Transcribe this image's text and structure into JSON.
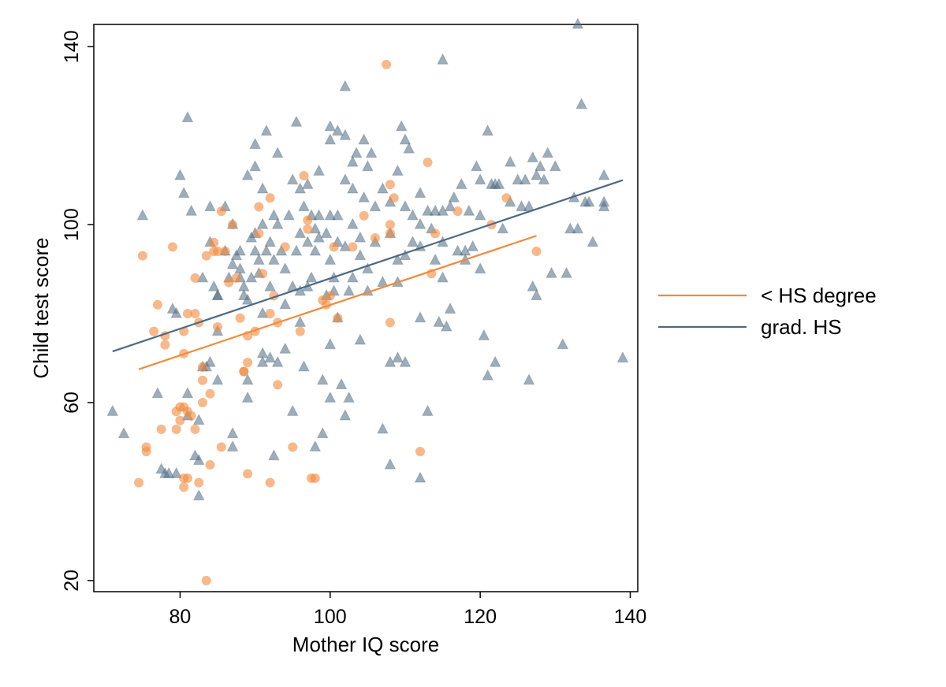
{
  "chart_data": {
    "type": "scatter",
    "title": "",
    "xlabel": "Mother IQ score",
    "ylabel": "Child test score",
    "xlim": [
      68.5,
      141
    ],
    "ylim": [
      17.5,
      145
    ],
    "xticks": [
      80,
      100,
      120,
      140
    ],
    "yticks": [
      20,
      60,
      100,
      140
    ],
    "grid": false,
    "legend_position": "right",
    "series": [
      {
        "name": "< HS degree",
        "marker": "circle",
        "color": "#F4893A",
        "line": {
          "x": [
            74.5,
            127.5
          ],
          "y": [
            67.5,
            97.5
          ]
        },
        "points": [
          [
            74.5,
            42
          ],
          [
            75,
            93
          ],
          [
            75.5,
            50
          ],
          [
            75.5,
            49
          ],
          [
            76.5,
            76
          ],
          [
            77,
            82
          ],
          [
            77.5,
            54
          ],
          [
            78,
            73
          ],
          [
            78,
            75
          ],
          [
            79,
            95
          ],
          [
            79.5,
            54
          ],
          [
            79.5,
            58
          ],
          [
            80,
            56
          ],
          [
            80,
            59
          ],
          [
            80.5,
            43
          ],
          [
            80.5,
            41
          ],
          [
            80.5,
            71
          ],
          [
            80.5,
            76
          ],
          [
            80.5,
            59
          ],
          [
            81,
            43
          ],
          [
            81,
            80
          ],
          [
            81,
            58
          ],
          [
            81.5,
            57
          ],
          [
            82,
            80
          ],
          [
            82,
            88
          ],
          [
            82,
            54
          ],
          [
            82.5,
            42
          ],
          [
            82.5,
            78
          ],
          [
            83,
            60
          ],
          [
            83,
            65
          ],
          [
            83,
            68
          ],
          [
            83.5,
            93
          ],
          [
            83.5,
            20
          ],
          [
            84,
            62
          ],
          [
            84,
            46
          ],
          [
            84.5,
            94
          ],
          [
            84.5,
            96
          ],
          [
            85,
            94
          ],
          [
            85,
            77
          ],
          [
            85.5,
            103
          ],
          [
            85.5,
            50
          ],
          [
            86,
            94
          ],
          [
            86.5,
            87
          ],
          [
            87,
            100
          ],
          [
            87.5,
            88
          ],
          [
            88,
            79
          ],
          [
            88.5,
            67
          ],
          [
            88.5,
            67
          ],
          [
            89,
            44
          ],
          [
            89,
            75
          ],
          [
            89,
            69
          ],
          [
            90,
            76
          ],
          [
            90.5,
            104
          ],
          [
            90.5,
            98
          ],
          [
            91,
            89
          ],
          [
            92,
            80
          ],
          [
            92,
            106
          ],
          [
            92,
            42
          ],
          [
            92.5,
            84
          ],
          [
            93,
            78
          ],
          [
            93,
            64
          ],
          [
            94,
            95
          ],
          [
            95,
            50
          ],
          [
            96,
            76
          ],
          [
            96.5,
            111
          ],
          [
            97,
            101
          ],
          [
            97,
            99
          ],
          [
            97.5,
            43
          ],
          [
            98,
            43
          ],
          [
            99,
            83
          ],
          [
            99.5,
            82
          ],
          [
            100,
            84
          ],
          [
            100.5,
            95
          ],
          [
            101,
            79
          ],
          [
            103,
            95
          ],
          [
            104.5,
            102
          ],
          [
            106,
            97
          ],
          [
            107.5,
            136
          ],
          [
            108,
            100
          ],
          [
            108,
            98
          ],
          [
            108,
            109
          ],
          [
            108,
            78
          ],
          [
            108.5,
            106
          ],
          [
            112,
            49
          ],
          [
            113,
            114
          ],
          [
            113.5,
            89
          ],
          [
            114,
            98
          ],
          [
            117,
            103
          ],
          [
            121.5,
            100
          ],
          [
            123.5,
            106
          ],
          [
            127.5,
            94
          ]
        ]
      },
      {
        "name": "grad. HS",
        "marker": "triangle",
        "color": "#4C6A82",
        "line": {
          "x": [
            71,
            139
          ],
          "y": [
            71.5,
            110
          ]
        },
        "points": [
          [
            71,
            58
          ],
          [
            72.5,
            53
          ],
          [
            75,
            102
          ],
          [
            77,
            62
          ],
          [
            77.5,
            45
          ],
          [
            78,
            44
          ],
          [
            78.5,
            44
          ],
          [
            79,
            81
          ],
          [
            79.5,
            80
          ],
          [
            79.5,
            44
          ],
          [
            80,
            111
          ],
          [
            80.5,
            107
          ],
          [
            81,
            124
          ],
          [
            81,
            62
          ],
          [
            81,
            57
          ],
          [
            81.5,
            103
          ],
          [
            82,
            48
          ],
          [
            82.5,
            47
          ],
          [
            82.5,
            39
          ],
          [
            82.5,
            56
          ],
          [
            83,
            68
          ],
          [
            83,
            88
          ],
          [
            83.5,
            68
          ],
          [
            84,
            104
          ],
          [
            84,
            96
          ],
          [
            84,
            69
          ],
          [
            84.5,
            86
          ],
          [
            85,
            84
          ],
          [
            85,
            84
          ],
          [
            85,
            76
          ],
          [
            85,
            65
          ],
          [
            86,
            104
          ],
          [
            86,
            94
          ],
          [
            86.5,
            88
          ],
          [
            87,
            91
          ],
          [
            87,
            100
          ],
          [
            87,
            53
          ],
          [
            87,
            50
          ],
          [
            87.5,
            93
          ],
          [
            88,
            94
          ],
          [
            88,
            90
          ],
          [
            88,
            88
          ],
          [
            88.5,
            86
          ],
          [
            88.5,
            84
          ],
          [
            89,
            111
          ],
          [
            89,
            83
          ],
          [
            89,
            65
          ],
          [
            89,
            61
          ],
          [
            89.5,
            97
          ],
          [
            89.5,
            88
          ],
          [
            90,
            118
          ],
          [
            90,
            113
          ],
          [
            90,
            98
          ],
          [
            90,
            94
          ],
          [
            90.5,
            92
          ],
          [
            90.5,
            89
          ],
          [
            91,
            108
          ],
          [
            91,
            100
          ],
          [
            91,
            80
          ],
          [
            91,
            71
          ],
          [
            91,
            69
          ],
          [
            91.5,
            121
          ],
          [
            91.5,
            94
          ],
          [
            92,
            96
          ],
          [
            92,
            86
          ],
          [
            92,
            70
          ],
          [
            92.5,
            102
          ],
          [
            92.5,
            92
          ],
          [
            92.5,
            48
          ],
          [
            93,
            116
          ],
          [
            93,
            100
          ],
          [
            93,
            69
          ],
          [
            93.5,
            94
          ],
          [
            94,
            90
          ],
          [
            94,
            82
          ],
          [
            94,
            72
          ],
          [
            94.5,
            102
          ],
          [
            95,
            110
          ],
          [
            95,
            86
          ],
          [
            95,
            58
          ],
          [
            95.5,
            123
          ],
          [
            95.5,
            94
          ],
          [
            96,
            108
          ],
          [
            96,
            98
          ],
          [
            96,
            85
          ],
          [
            96,
            78
          ],
          [
            96.5,
            104
          ],
          [
            96.5,
            68
          ],
          [
            97,
            109
          ],
          [
            97,
            96
          ],
          [
            97,
            86
          ],
          [
            97.5,
            102
          ],
          [
            97.5,
            88
          ],
          [
            98,
            99
          ],
          [
            98,
            94
          ],
          [
            98,
            50
          ],
          [
            98.5,
            112
          ],
          [
            98.5,
            102
          ],
          [
            98.5,
            97
          ],
          [
            99,
            53
          ],
          [
            99,
            65
          ],
          [
            99.5,
            98
          ],
          [
            99.5,
            84
          ],
          [
            100,
            122
          ],
          [
            100,
            119
          ],
          [
            100,
            102
          ],
          [
            100,
            92
          ],
          [
            100,
            73
          ],
          [
            100,
            61
          ],
          [
            100.5,
            88
          ],
          [
            100.5,
            85
          ],
          [
            101,
            121
          ],
          [
            101,
            102
          ],
          [
            101,
            96
          ],
          [
            101,
            79
          ],
          [
            101.5,
            64
          ],
          [
            102,
            131
          ],
          [
            102,
            120
          ],
          [
            102,
            110
          ],
          [
            102,
            95
          ],
          [
            102,
            57
          ],
          [
            102.5,
            85
          ],
          [
            102.5,
            61
          ],
          [
            103,
            114
          ],
          [
            103,
            108
          ],
          [
            103,
            100
          ],
          [
            103,
            88
          ],
          [
            103.5,
            116
          ],
          [
            104,
            97
          ],
          [
            104,
            93
          ],
          [
            104,
            74
          ],
          [
            104.5,
            119
          ],
          [
            104.5,
            106
          ],
          [
            105,
            113
          ],
          [
            105,
            90
          ],
          [
            105,
            85
          ],
          [
            105.5,
            116
          ],
          [
            106,
            104
          ],
          [
            106,
            96
          ],
          [
            107,
            108
          ],
          [
            107,
            87
          ],
          [
            107,
            54
          ],
          [
            108,
            105
          ],
          [
            108,
            98
          ],
          [
            108,
            69
          ],
          [
            108,
            46
          ],
          [
            109,
            112
          ],
          [
            109,
            92
          ],
          [
            109,
            87
          ],
          [
            109,
            70
          ],
          [
            109.5,
            122
          ],
          [
            110,
            119
          ],
          [
            110,
            104
          ],
          [
            110,
            93
          ],
          [
            110,
            69
          ],
          [
            110.5,
            117
          ],
          [
            111,
            102
          ],
          [
            111,
            96
          ],
          [
            112,
            107
          ],
          [
            112,
            100
          ],
          [
            112,
            95
          ],
          [
            112,
            79
          ],
          [
            112,
            43
          ],
          [
            113,
            103
          ],
          [
            113,
            58
          ],
          [
            113.5,
            99
          ],
          [
            114,
            103
          ],
          [
            114,
            92
          ],
          [
            114.5,
            78
          ],
          [
            115,
            137
          ],
          [
            115,
            103
          ],
          [
            115,
            96
          ],
          [
            115,
            88
          ],
          [
            115.5,
            77
          ],
          [
            116,
            104
          ],
          [
            116,
            81
          ],
          [
            116.5,
            106
          ],
          [
            117,
            94
          ],
          [
            117.5,
            109
          ],
          [
            118,
            94
          ],
          [
            118,
            92
          ],
          [
            118.5,
            103
          ],
          [
            119,
            95
          ],
          [
            119.5,
            113
          ],
          [
            120,
            110
          ],
          [
            120,
            102
          ],
          [
            120,
            90
          ],
          [
            120.5,
            75
          ],
          [
            121,
            121
          ],
          [
            121,
            66
          ],
          [
            121.5,
            109
          ],
          [
            122,
            109
          ],
          [
            122,
            69
          ],
          [
            122.5,
            109
          ],
          [
            123,
            99
          ],
          [
            124,
            114
          ],
          [
            124,
            105
          ],
          [
            125,
            110
          ],
          [
            125.5,
            104
          ],
          [
            126,
            110
          ],
          [
            126.5,
            65
          ],
          [
            126.5,
            104
          ],
          [
            127,
            115
          ],
          [
            127,
            86
          ],
          [
            127.5,
            111
          ],
          [
            127.5,
            84
          ],
          [
            128,
            113
          ],
          [
            128.5,
            110
          ],
          [
            129,
            116
          ],
          [
            129.5,
            89
          ],
          [
            130,
            113
          ],
          [
            131,
            73
          ],
          [
            131.5,
            89
          ],
          [
            132,
            99
          ],
          [
            132.5,
            106
          ],
          [
            133,
            145
          ],
          [
            133,
            99
          ],
          [
            133.5,
            127
          ],
          [
            134,
            105
          ],
          [
            134.5,
            105
          ],
          [
            135,
            96
          ],
          [
            136.5,
            111
          ],
          [
            136.5,
            105
          ],
          [
            136.5,
            104
          ],
          [
            139,
            70
          ]
        ]
      }
    ]
  }
}
